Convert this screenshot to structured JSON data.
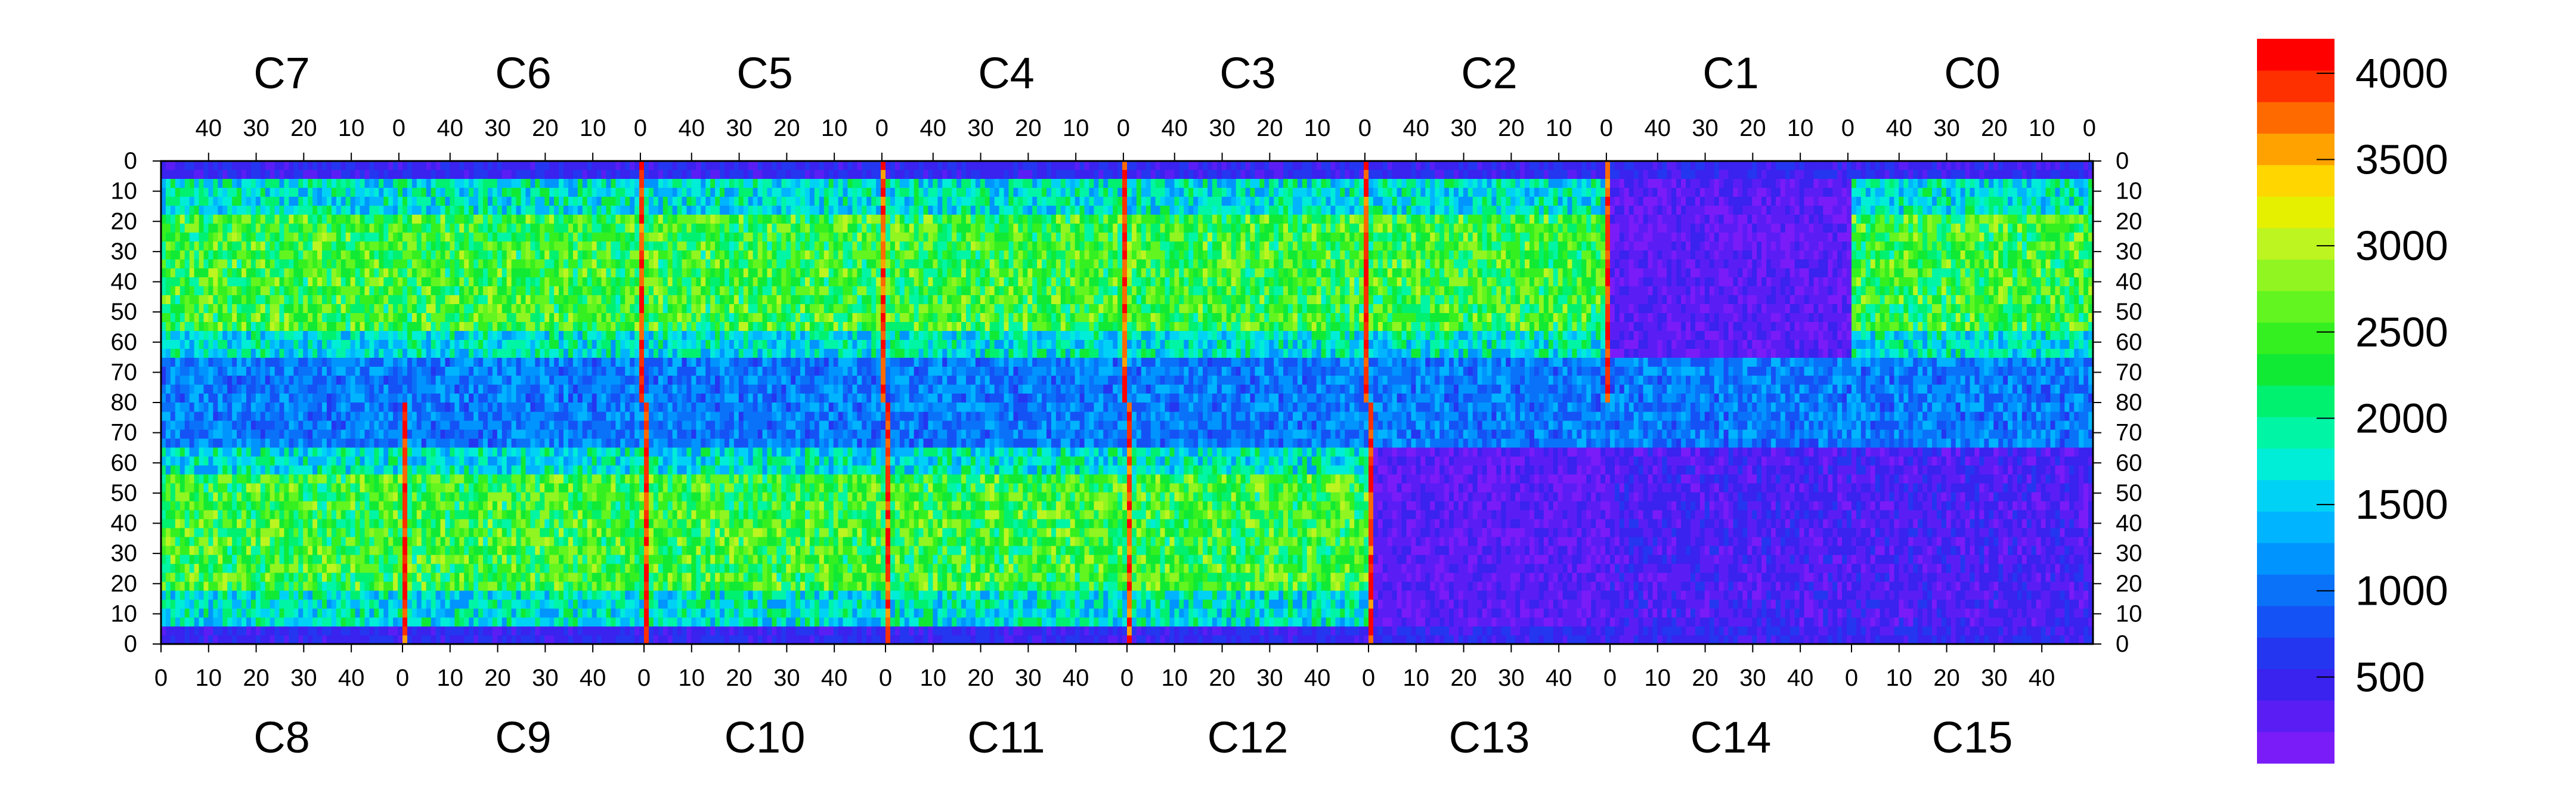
{
  "chart_data": {
    "type": "heatmap",
    "title": "",
    "xlabel": "",
    "ylabel": "",
    "top_chip_labels": [
      "C7",
      "C6",
      "C5",
      "C4",
      "C3",
      "C2",
      "C1",
      "C0"
    ],
    "bottom_chip_labels": [
      "C8",
      "C9",
      "C10",
      "C11",
      "C12",
      "C13",
      "C14",
      "C15"
    ],
    "top_tick_labels": [
      "40",
      "30",
      "20",
      "10",
      "0"
    ],
    "bottom_tick_labels": [
      "0",
      "10",
      "20",
      "30",
      "40"
    ],
    "top_axis_ticks": [
      40,
      30,
      20,
      10,
      0
    ],
    "bottom_axis_ticks": [
      0,
      10,
      20,
      30,
      40
    ],
    "chip_columns": 51,
    "y_tick_labels_top_half": [
      "0",
      "10",
      "20",
      "30",
      "40",
      "50",
      "60",
      "70",
      "80"
    ],
    "y_tick_labels_bottom_half": [
      "70",
      "60",
      "50",
      "40",
      "30",
      "20",
      "10",
      "0"
    ],
    "y_ticks_top_half": [
      0,
      10,
      20,
      30,
      40,
      50,
      60,
      70,
      80
    ],
    "y_ticks_bottom_half": [
      70,
      60,
      50,
      40,
      30,
      20,
      10,
      0
    ],
    "rows_per_chip": 81,
    "colorbar": {
      "min": 0,
      "max": 4200,
      "ticks": [
        500,
        1000,
        1500,
        2000,
        2500,
        3000,
        3500,
        4000
      ],
      "tick_labels": [
        "500",
        "1000",
        "1500",
        "2000",
        "2500",
        "3000",
        "3500",
        "4000"
      ],
      "colors": [
        "#7a1cf8",
        "#5a1ef5",
        "#3a22ef",
        "#2436f0",
        "#1552f5",
        "#0a72f8",
        "#0094ff",
        "#00b4ff",
        "#00d2f5",
        "#00edd7",
        "#00f5a5",
        "#00f070",
        "#10ea35",
        "#35f020",
        "#62f520",
        "#90f520",
        "#bdf520",
        "#e5f000",
        "#ffd600",
        "#ffa200",
        "#ff6a00",
        "#ff3000",
        "#ff0000"
      ]
    },
    "zero_value_color": "#ffffff",
    "description_regions": {
      "high_columns": "column 0 of C6/C5/C4/C3/C2 (top) and C9/C10/C11/C12/C13 (bottom) near 3500-4200",
      "bulk_top": "roughly 1500-3000 in top chips C2-C7 rows 10-60",
      "bulk_bottom": "roughly 1500-3000 in bottom chips C8-C12 rows 10-60",
      "low_region": "chips C13/C14/C15 bottom and C1 top largely 0-500"
    }
  }
}
